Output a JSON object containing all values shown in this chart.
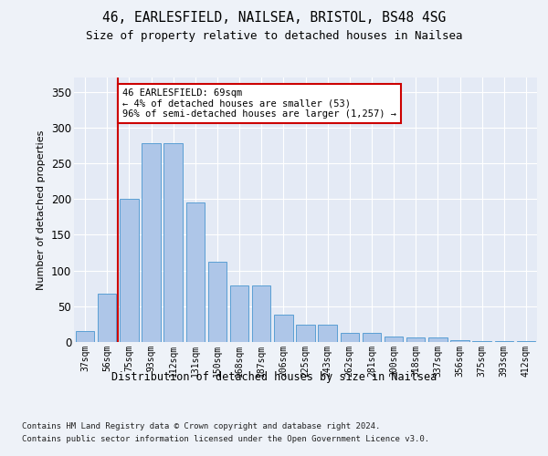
{
  "title1": "46, EARLESFIELD, NAILSEA, BRISTOL, BS48 4SG",
  "title2": "Size of property relative to detached houses in Nailsea",
  "xlabel": "Distribution of detached houses by size in Nailsea",
  "ylabel": "Number of detached properties",
  "categories": [
    "37sqm",
    "56sqm",
    "75sqm",
    "93sqm",
    "112sqm",
    "131sqm",
    "150sqm",
    "168sqm",
    "187sqm",
    "206sqm",
    "225sqm",
    "243sqm",
    "262sqm",
    "281sqm",
    "300sqm",
    "318sqm",
    "337sqm",
    "356sqm",
    "375sqm",
    "393sqm",
    "412sqm"
  ],
  "values": [
    15,
    67,
    200,
    278,
    278,
    195,
    112,
    79,
    79,
    38,
    24,
    24,
    13,
    13,
    8,
    6,
    6,
    3,
    1,
    1,
    1
  ],
  "bar_color": "#aec6e8",
  "bar_edge_color": "#5a9fd4",
  "vline_x_index": 1.5,
  "vline_color": "#cc0000",
  "annotation_text": "46 EARLESFIELD: 69sqm\n← 4% of detached houses are smaller (53)\n96% of semi-detached houses are larger (1,257) →",
  "annotation_box_color": "#ffffff",
  "annotation_box_edge": "#cc0000",
  "ylim": [
    0,
    370
  ],
  "yticks": [
    0,
    50,
    100,
    150,
    200,
    250,
    300,
    350
  ],
  "footer1": "Contains HM Land Registry data © Crown copyright and database right 2024.",
  "footer2": "Contains public sector information licensed under the Open Government Licence v3.0.",
  "bg_color": "#eef2f8",
  "plot_bg_color": "#e4eaf5"
}
